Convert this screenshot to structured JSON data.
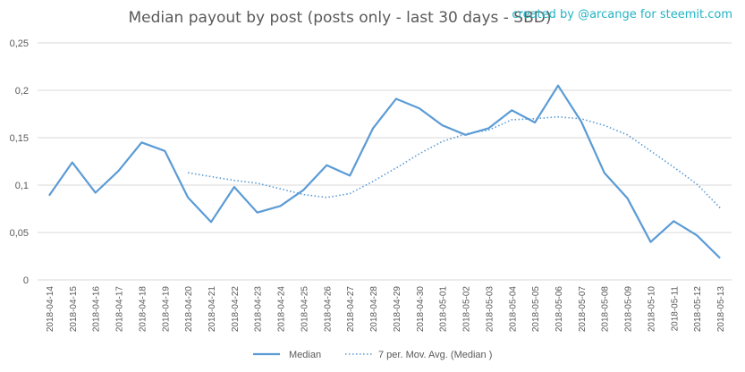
{
  "chart_data": {
    "type": "line",
    "title": "Median payout by post (posts only - last 30 days - SBD)",
    "credit": "created by @arcange for steemit.com",
    "x": [
      "2018-04-14",
      "2018-04-15",
      "2018-04-16",
      "2018-04-17",
      "2018-04-18",
      "2018-04-19",
      "2018-04-20",
      "2018-04-21",
      "2018-04-22",
      "2018-04-23",
      "2018-04-24",
      "2018-04-25",
      "2018-04-26",
      "2018-04-27",
      "2018-04-28",
      "2018-04-29",
      "2018-04-30",
      "2018-05-01",
      "2018-05-02",
      "2018-05-03",
      "2018-05-04",
      "2018-05-05",
      "2018-05-06",
      "2018-05-07",
      "2018-05-08",
      "2018-05-09",
      "2018-05-10",
      "2018-05-11",
      "2018-05-12",
      "2018-05-13"
    ],
    "ylim": [
      0,
      0.25
    ],
    "yticks": [
      "0",
      "0,05",
      "0,1",
      "0,15",
      "0,2",
      "0,25"
    ],
    "grid": true,
    "legend_position": "bottom",
    "series": [
      {
        "name": "Median",
        "style": "solid",
        "color": "#5b9bd5",
        "values": [
          0.089,
          0.124,
          0.092,
          0.115,
          0.145,
          0.136,
          0.087,
          0.061,
          0.098,
          0.071,
          0.078,
          0.095,
          0.121,
          0.11,
          0.16,
          0.191,
          0.181,
          0.163,
          0.153,
          0.16,
          0.179,
          0.166,
          0.205,
          0.167,
          0.113,
          0.086,
          0.04,
          0.062,
          0.047,
          0.023
        ]
      },
      {
        "name": "7 per. Mov. Avg. (Median )",
        "style": "dotted",
        "color": "#5b9bd5",
        "values": [
          null,
          null,
          null,
          null,
          null,
          null,
          0.113,
          0.109,
          0.105,
          0.102,
          0.096,
          0.09,
          0.087,
          0.091,
          0.104,
          0.118,
          0.133,
          0.146,
          0.154,
          0.158,
          0.169,
          0.17,
          0.172,
          0.17,
          0.163,
          0.153,
          0.136,
          0.119,
          0.101,
          0.076
        ]
      }
    ]
  }
}
